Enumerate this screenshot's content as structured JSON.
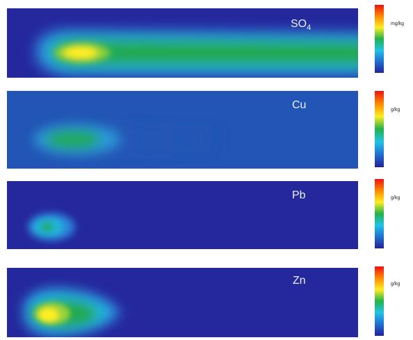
{
  "chart_data": [
    {
      "type": "heatmap",
      "species": "SO",
      "species_sub": "4",
      "colorbar_unit": "mg/kg",
      "colormap": [
        "#22229a",
        "#1f6fd0",
        "#1fc4e6",
        "#22b24a",
        "#ffee22",
        "#ff8800",
        "#ee1111"
      ],
      "background_level": 0.18,
      "plume": {
        "source_x": 0.21,
        "source_y": 0.62,
        "peak_level": 0.88,
        "extent": "full-width"
      }
    },
    {
      "type": "heatmap",
      "species": "Cu",
      "species_sub": "",
      "colorbar_unit": "g/kg",
      "colormap": [
        "#22229a",
        "#1f6fd0",
        "#1fc4e6",
        "#22b24a",
        "#ffee22",
        "#ff8800",
        "#ee1111"
      ],
      "background_level": 0.22,
      "plume": {
        "source_x": 0.16,
        "source_y": 0.62,
        "peak_level": 0.55,
        "extent": "short"
      }
    },
    {
      "type": "heatmap",
      "species": "Pb",
      "species_sub": "",
      "colorbar_unit": "g/kg",
      "colormap": [
        "#22229a",
        "#1f6fd0",
        "#1fc4e6",
        "#22b24a",
        "#ffee22",
        "#ff8800",
        "#ee1111"
      ],
      "background_level": 0.0,
      "plume": {
        "source_x": 0.12,
        "source_y": 0.66,
        "peak_level": 0.5,
        "extent": "very-short"
      }
    },
    {
      "type": "heatmap",
      "species": "Zn",
      "species_sub": "",
      "colorbar_unit": "g/kg",
      "colormap": [
        "#22229a",
        "#1f6fd0",
        "#1fc4e6",
        "#22b24a",
        "#ffee22",
        "#ff8800",
        "#ee1111"
      ],
      "background_level": 0.0,
      "plume": {
        "source_x": 0.12,
        "source_y": 0.63,
        "peak_level": 0.85,
        "extent": "short"
      }
    }
  ]
}
